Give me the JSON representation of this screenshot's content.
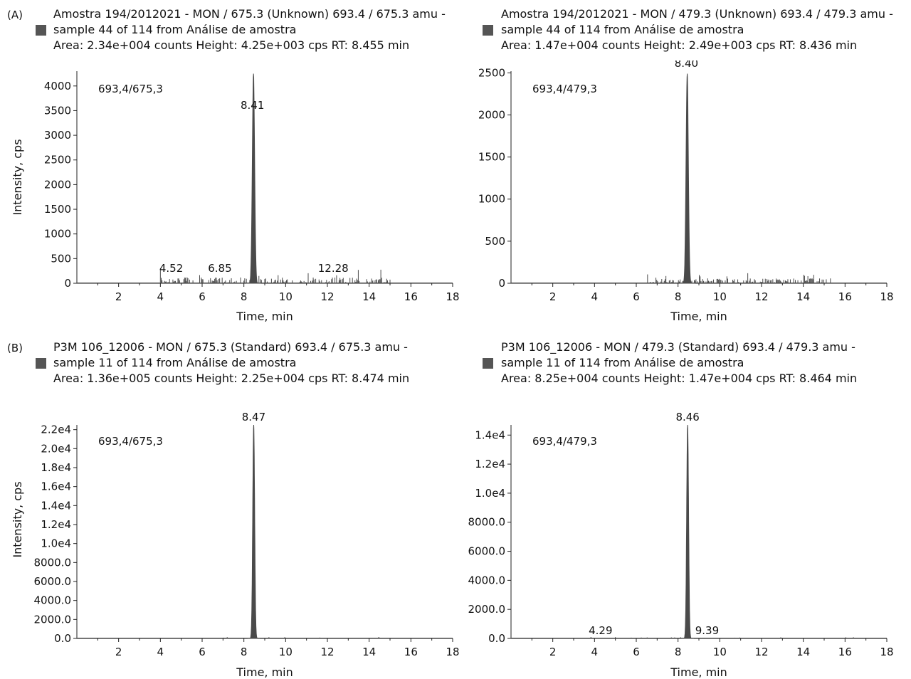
{
  "panels": [
    {
      "label": "(A)",
      "label_left": "(B)"
    }
  ],
  "chart_data": [
    {
      "type": "line",
      "panel": "(A)",
      "header": [
        "Amostra 194/2012021 - MON / 675.3 (Unknown) 693.4 / 675.3 amu -",
        "sample 44 of 114 from Análise de amostra",
        "Area: 2.34e+004 counts Height: 4.25e+003 cps RT: 8.455 min"
      ],
      "inset_label": "693,4/675,3",
      "xlabel": "Time, min",
      "ylabel": "Intensity, cps",
      "xlim": [
        0,
        18
      ],
      "ylim": [
        0,
        4300
      ],
      "xticks": [
        "2",
        "4",
        "6",
        "8",
        "10",
        "12",
        "14",
        "16",
        "18"
      ],
      "yticks": [
        {
          "v": 0,
          "t": "0"
        },
        {
          "v": 500,
          "t": "500"
        },
        {
          "v": 1000,
          "t": "1000"
        },
        {
          "v": 1500,
          "t": "1500"
        },
        {
          "v": 2000,
          "t": "2000"
        },
        {
          "v": 2500,
          "t": "2500"
        },
        {
          "v": 3000,
          "t": "3000"
        },
        {
          "v": 3500,
          "t": "3500"
        },
        {
          "v": 4000,
          "t": "4000"
        }
      ],
      "peak": {
        "x": 8.46,
        "y": 4250,
        "width": 0.12
      },
      "noise_level": 120,
      "noise_range": [
        4.0,
        15.0
      ],
      "annotations": [
        {
          "x": 8.41,
          "y": 3480,
          "t": "8.41"
        },
        {
          "x": 4.52,
          "y": 170,
          "t": "4.52"
        },
        {
          "x": 6.85,
          "y": 170,
          "t": "6.85"
        },
        {
          "x": 12.28,
          "y": 170,
          "t": "12.28"
        }
      ]
    },
    {
      "type": "line",
      "header": [
        "Amostra 194/2012021 - MON / 479.3 (Unknown) 693.4 / 479.3 amu -",
        "sample 44 of 114 from Análise de amostra",
        "Area: 1.47e+004 counts Height: 2.49e+003 cps RT: 8.436 min"
      ],
      "inset_label": "693,4/479,3",
      "xlabel": "Time, min",
      "ylabel": "",
      "xlim": [
        0,
        18
      ],
      "ylim": [
        0,
        2520
      ],
      "xticks": [
        "2",
        "4",
        "6",
        "8",
        "10",
        "12",
        "14",
        "16",
        "18"
      ],
      "yticks": [
        {
          "v": 0,
          "t": "0"
        },
        {
          "v": 500,
          "t": "500"
        },
        {
          "v": 1000,
          "t": "1000"
        },
        {
          "v": 1500,
          "t": "1500"
        },
        {
          "v": 2000,
          "t": "2000"
        },
        {
          "v": 2500,
          "t": "2500"
        }
      ],
      "peak": {
        "x": 8.44,
        "y": 2490,
        "width": 0.12
      },
      "noise_level": 60,
      "noise_range": [
        6.5,
        15.3
      ],
      "annotations": [
        {
          "x": 8.4,
          "y": 2490,
          "t": "8.40"
        }
      ]
    },
    {
      "type": "line",
      "panel": "(B)",
      "header": [
        "P3M 106_12006 - MON / 675.3 (Standard) 693.4 / 675.3 amu -",
        "sample 11 of 114 from Análise de amostra",
        "Area: 1.36e+005 counts Height: 2.25e+004 cps RT: 8.474 min"
      ],
      "inset_label": "693,4/675,3",
      "xlabel": "Time, min",
      "ylabel": "Intensity, cps",
      "xlim": [
        0,
        18
      ],
      "ylim": [
        0,
        22500
      ],
      "xticks": [
        "2",
        "4",
        "6",
        "8",
        "10",
        "12",
        "14",
        "16",
        "18"
      ],
      "yticks": [
        {
          "v": 0,
          "t": "0.0"
        },
        {
          "v": 2000,
          "t": "2000.0"
        },
        {
          "v": 4000,
          "t": "4000.0"
        },
        {
          "v": 6000,
          "t": "6000.0"
        },
        {
          "v": 8000,
          "t": "8000.0"
        },
        {
          "v": 10000,
          "t": "1.0e4"
        },
        {
          "v": 12000,
          "t": "1.2e4"
        },
        {
          "v": 14000,
          "t": "1.4e4"
        },
        {
          "v": 16000,
          "t": "1.6e4"
        },
        {
          "v": 18000,
          "t": "1.8e4"
        },
        {
          "v": 20000,
          "t": "2.0e4"
        },
        {
          "v": 22000,
          "t": "2.2e4"
        }
      ],
      "peak": {
        "x": 8.47,
        "y": 22500,
        "width": 0.1
      },
      "noise_level": 60,
      "noise_range": [
        7.0,
        14.5
      ],
      "annotations": [
        {
          "x": 8.47,
          "y": 22500,
          "t": "8.47"
        }
      ]
    },
    {
      "type": "line",
      "header": [
        "P3M 106_12006 - MON / 479.3 (Standard) 693.4 / 479.3 amu -",
        "sample 11 of 114 from Análise de amostra",
        "Area: 8.25e+004 counts Height: 1.47e+004 cps RT: 8.464 min"
      ],
      "inset_label": "693,4/479,3",
      "xlabel": "Time, min",
      "ylabel": "",
      "xlim": [
        0,
        18
      ],
      "ylim": [
        0,
        14700
      ],
      "xticks": [
        "2",
        "4",
        "6",
        "8",
        "10",
        "12",
        "14",
        "16",
        "18"
      ],
      "yticks": [
        {
          "v": 0,
          "t": "0.0"
        },
        {
          "v": 2000,
          "t": "2000.0"
        },
        {
          "v": 4000,
          "t": "4000.0"
        },
        {
          "v": 6000,
          "t": "6000.0"
        },
        {
          "v": 8000,
          "t": "8000.0"
        },
        {
          "v": 10000,
          "t": "1.0e4"
        },
        {
          "v": 12000,
          "t": "1.2e4"
        },
        {
          "v": 14000,
          "t": "1.4e4"
        }
      ],
      "peak": {
        "x": 8.46,
        "y": 14700,
        "width": 0.1
      },
      "noise_level": 40,
      "noise_range": [
        3.8,
        17.5
      ],
      "annotations": [
        {
          "x": 8.46,
          "y": 14700,
          "t": "8.46"
        },
        {
          "x": 4.29,
          "y": 100,
          "t": "4.29"
        },
        {
          "x": 9.39,
          "y": 100,
          "t": "9.39"
        }
      ]
    }
  ],
  "colors": {
    "trace": "#4a4a4a",
    "axis": "#222222",
    "legend": "#555555"
  }
}
